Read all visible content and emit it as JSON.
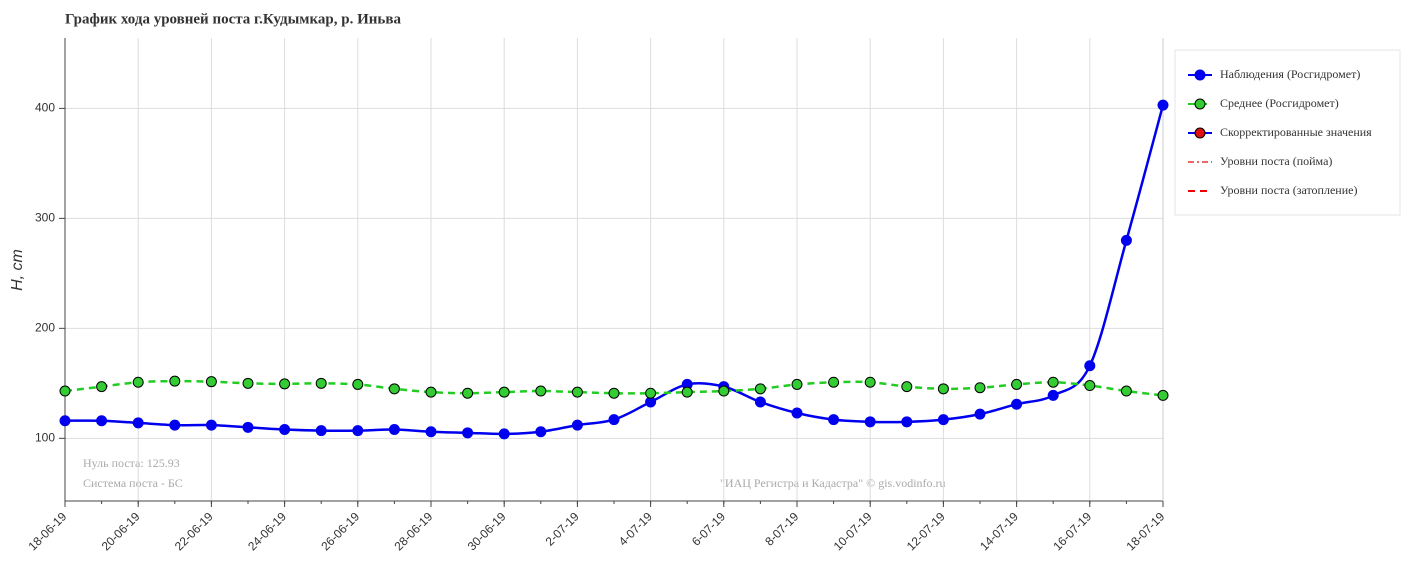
{
  "chart_data": {
    "type": "line",
    "title": "График хода уровней поста г.Кудымкар, р. Иньва",
    "y_label": "H, cm",
    "categories": [
      "18-06-19",
      null,
      "20-06-19",
      null,
      "22-06-19",
      null,
      "24-06-19",
      null,
      "26-06-19",
      null,
      "28-06-19",
      null,
      "30-06-19",
      null,
      "2-07-19",
      null,
      "4-07-19",
      null,
      "6-07-19",
      null,
      "8-07-19",
      null,
      "10-07-19",
      null,
      "12-07-19",
      null,
      "14-07-19",
      null,
      "16-07-19",
      null,
      "18-07-19"
    ],
    "series": [
      {
        "name": "Наблюдения (Росгидромет)",
        "color": "#0000ee",
        "marker": "#0000ee",
        "dash": "solid",
        "values": [
          116,
          116,
          114,
          112,
          112,
          110,
          108,
          107,
          107,
          108,
          106,
          105,
          104,
          106,
          112,
          117,
          133,
          149,
          147,
          133,
          123,
          117,
          115,
          115,
          117,
          122,
          131,
          139,
          166,
          280,
          403
        ]
      },
      {
        "name": "Среднее (Росгидромет)",
        "color": "#22cc22",
        "marker": "#33cc33",
        "dash": "dashed",
        "values": [
          143,
          147,
          151,
          152,
          151.5,
          150,
          149.5,
          150,
          149,
          145,
          142,
          141,
          142,
          143,
          142,
          141,
          141,
          142,
          143,
          145,
          149,
          151,
          151,
          147,
          145,
          146,
          149,
          151,
          148,
          143,
          139
        ]
      },
      {
        "name": "Скорректированные значения",
        "color": "#0000ee",
        "marker": "#dd1111",
        "dash": "solid",
        "values": [
          null,
          null,
          null,
          null,
          null,
          null,
          null,
          null,
          null,
          null,
          null,
          null,
          null,
          null,
          null,
          null,
          null,
          null,
          null,
          null,
          null,
          null,
          null,
          null,
          null,
          null,
          null,
          null,
          null,
          null,
          null
        ]
      },
      {
        "name": "Уровни поста (пойма)",
        "color": "#ee6666",
        "marker": null,
        "dash": "dashdot",
        "values": [
          null,
          null,
          null,
          null,
          null,
          null,
          null,
          null,
          null,
          null,
          null,
          null,
          null,
          null,
          null,
          null,
          null,
          null,
          null,
          null,
          null,
          null,
          null,
          null,
          null,
          null,
          null,
          null,
          null,
          null,
          null
        ]
      },
      {
        "name": "Уровни поста (затопление)",
        "color": "#ee0000",
        "marker": null,
        "dash": "dashed",
        "values": [
          null,
          null,
          null,
          null,
          null,
          null,
          null,
          null,
          null,
          null,
          null,
          null,
          null,
          null,
          null,
          null,
          null,
          null,
          null,
          null,
          null,
          null,
          null,
          null,
          null,
          null,
          null,
          null,
          null,
          null,
          null
        ]
      }
    ],
    "ylim": [
      43,
      464
    ],
    "yticks": [
      100,
      200,
      300,
      400
    ],
    "grid": true,
    "legend": "right",
    "annotations": [
      "Нуль поста: 125.93",
      "Система поста - БС",
      "\"ИАЦ Регистра и Кадастра\" © gis.vodinfo.ru"
    ]
  }
}
